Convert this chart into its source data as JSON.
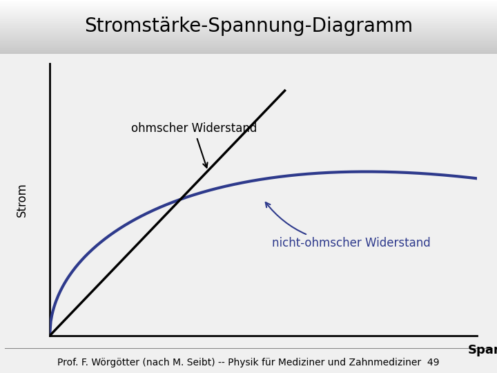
{
  "title": "Stromstärke-Spannung-Diagramm",
  "ylabel": "Strom",
  "xlabel": "Spannung",
  "footer": "Prof. F. Wörgötter (nach M. Seibt) -- Physik für Mediziner und Zahnmediziner  49",
  "label_ohm": "ohmscher Widerstand",
  "label_nonohm": "nicht-ohmscher Widerstand",
  "title_fontsize": 20,
  "ylabel_fontsize": 12,
  "xlabel_fontsize": 13,
  "annotation_ohm_fontsize": 12,
  "annotation_nonohm_fontsize": 12,
  "footer_fontsize": 10,
  "header_bg": "#d0d0d0",
  "plot_bg": "#ffffff",
  "fig_bg": "#f0f0f0",
  "ohm_color": "#000000",
  "nonohm_color": "#2e3a8c",
  "annotation_ohm_color": "#000000",
  "annotation_nonohm_color": "#2e3a8c"
}
